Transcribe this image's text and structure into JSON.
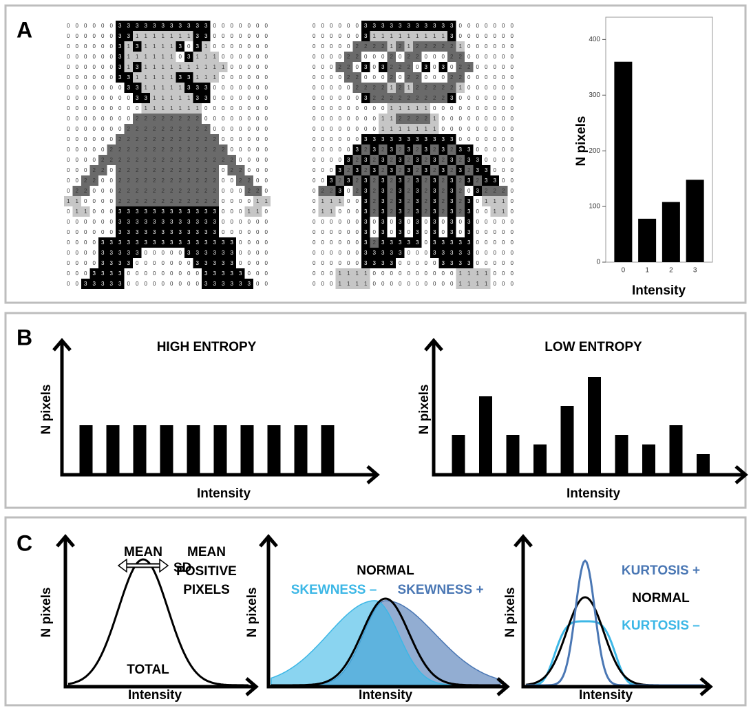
{
  "panel_labels": [
    "A",
    "B",
    "C"
  ],
  "chart_data": [
    {
      "type": "grid",
      "values": [
        [
          0,
          0,
          0,
          0,
          0,
          0,
          3,
          3,
          3,
          3,
          3,
          3,
          3,
          3,
          3,
          3,
          3,
          0,
          0,
          0,
          0,
          0,
          0,
          0
        ],
        [
          0,
          0,
          0,
          0,
          0,
          0,
          3,
          3,
          1,
          1,
          1,
          1,
          1,
          1,
          1,
          3,
          3,
          0,
          0,
          0,
          0,
          0,
          0,
          0
        ],
        [
          0,
          0,
          0,
          0,
          0,
          0,
          3,
          1,
          3,
          1,
          1,
          1,
          1,
          3,
          0,
          3,
          1,
          0,
          0,
          0,
          0,
          0,
          0,
          0
        ],
        [
          0,
          0,
          0,
          0,
          0,
          0,
          3,
          1,
          1,
          1,
          1,
          1,
          1,
          0,
          3,
          1,
          1,
          1,
          0,
          0,
          0,
          0,
          0,
          0
        ],
        [
          0,
          0,
          0,
          0,
          0,
          0,
          3,
          1,
          3,
          1,
          1,
          1,
          1,
          1,
          1,
          1,
          1,
          1,
          1,
          0,
          0,
          0,
          0,
          0
        ],
        [
          0,
          0,
          0,
          0,
          0,
          0,
          3,
          3,
          1,
          1,
          1,
          1,
          1,
          3,
          3,
          1,
          1,
          1,
          0,
          0,
          0,
          0,
          0,
          0
        ],
        [
          0,
          0,
          0,
          0,
          0,
          0,
          0,
          3,
          3,
          1,
          1,
          1,
          1,
          1,
          3,
          3,
          3,
          0,
          0,
          0,
          0,
          0,
          0,
          0
        ],
        [
          0,
          0,
          0,
          0,
          0,
          0,
          0,
          0,
          3,
          3,
          1,
          1,
          1,
          1,
          1,
          3,
          3,
          0,
          0,
          0,
          0,
          0,
          0,
          0
        ],
        [
          0,
          0,
          0,
          0,
          0,
          0,
          0,
          0,
          0,
          1,
          1,
          1,
          1,
          1,
          1,
          1,
          0,
          0,
          0,
          0,
          0,
          0,
          0,
          0
        ],
        [
          0,
          0,
          0,
          0,
          0,
          0,
          0,
          0,
          2,
          2,
          2,
          2,
          2,
          2,
          2,
          2,
          0,
          0,
          0,
          0,
          0,
          0,
          0,
          0
        ],
        [
          0,
          0,
          0,
          0,
          0,
          0,
          0,
          2,
          2,
          2,
          2,
          2,
          2,
          2,
          2,
          2,
          2,
          0,
          0,
          0,
          0,
          0,
          0,
          0
        ],
        [
          0,
          0,
          0,
          0,
          0,
          0,
          2,
          2,
          2,
          2,
          2,
          2,
          2,
          2,
          2,
          2,
          2,
          2,
          0,
          0,
          0,
          0,
          0,
          0
        ],
        [
          0,
          0,
          0,
          0,
          0,
          2,
          2,
          2,
          2,
          2,
          2,
          2,
          2,
          2,
          2,
          2,
          2,
          2,
          2,
          0,
          0,
          0,
          0,
          0
        ],
        [
          0,
          0,
          0,
          0,
          2,
          2,
          2,
          2,
          2,
          2,
          2,
          2,
          2,
          2,
          2,
          2,
          2,
          2,
          2,
          2,
          0,
          0,
          0,
          0
        ],
        [
          0,
          0,
          0,
          2,
          2,
          0,
          2,
          2,
          2,
          2,
          2,
          2,
          2,
          2,
          2,
          2,
          2,
          2,
          0,
          2,
          2,
          0,
          0,
          0
        ],
        [
          0,
          0,
          2,
          2,
          0,
          0,
          2,
          2,
          2,
          2,
          2,
          2,
          2,
          2,
          2,
          2,
          2,
          2,
          0,
          0,
          2,
          2,
          0,
          0
        ],
        [
          0,
          2,
          2,
          0,
          0,
          0,
          2,
          2,
          2,
          2,
          2,
          2,
          2,
          2,
          2,
          2,
          2,
          2,
          0,
          0,
          0,
          2,
          2,
          0
        ],
        [
          1,
          1,
          0,
          0,
          0,
          0,
          2,
          2,
          2,
          2,
          2,
          2,
          2,
          2,
          2,
          2,
          2,
          2,
          0,
          0,
          0,
          0,
          1,
          1
        ],
        [
          0,
          1,
          1,
          0,
          0,
          0,
          3,
          3,
          3,
          3,
          3,
          3,
          3,
          3,
          3,
          3,
          3,
          3,
          0,
          0,
          0,
          1,
          1,
          0
        ],
        [
          0,
          0,
          0,
          0,
          0,
          0,
          3,
          3,
          3,
          3,
          3,
          3,
          3,
          3,
          3,
          3,
          3,
          3,
          0,
          0,
          0,
          0,
          0,
          0
        ],
        [
          0,
          0,
          0,
          0,
          0,
          0,
          3,
          3,
          3,
          3,
          3,
          3,
          3,
          3,
          3,
          3,
          3,
          3,
          0,
          0,
          0,
          0,
          0,
          0
        ],
        [
          0,
          0,
          0,
          0,
          3,
          3,
          3,
          3,
          3,
          3,
          3,
          3,
          3,
          3,
          3,
          3,
          3,
          3,
          3,
          3,
          0,
          0,
          0,
          0
        ],
        [
          0,
          0,
          0,
          0,
          3,
          3,
          3,
          3,
          3,
          0,
          0,
          0,
          0,
          0,
          3,
          3,
          3,
          3,
          3,
          3,
          0,
          0,
          0,
          0
        ],
        [
          0,
          0,
          0,
          0,
          3,
          3,
          3,
          3,
          0,
          0,
          0,
          0,
          0,
          0,
          0,
          3,
          3,
          3,
          3,
          3,
          0,
          0,
          0,
          0
        ],
        [
          0,
          0,
          0,
          3,
          3,
          3,
          3,
          0,
          0,
          0,
          0,
          0,
          0,
          0,
          0,
          0,
          3,
          3,
          3,
          3,
          3,
          0,
          0,
          0
        ],
        [
          0,
          0,
          3,
          3,
          3,
          3,
          3,
          0,
          0,
          0,
          0,
          0,
          0,
          0,
          0,
          0,
          3,
          3,
          3,
          3,
          3,
          3,
          0,
          0
        ]
      ]
    },
    {
      "type": "grid",
      "values": [
        [
          0,
          0,
          0,
          0,
          0,
          0,
          3,
          3,
          3,
          3,
          3,
          3,
          3,
          3,
          3,
          3,
          3,
          0,
          0,
          0,
          0,
          0,
          0,
          0
        ],
        [
          0,
          0,
          0,
          0,
          0,
          0,
          3,
          1,
          1,
          1,
          1,
          1,
          1,
          1,
          1,
          1,
          3,
          0,
          0,
          0,
          0,
          0,
          0,
          0
        ],
        [
          0,
          0,
          0,
          0,
          0,
          2,
          2,
          2,
          2,
          1,
          2,
          1,
          2,
          2,
          2,
          2,
          2,
          1,
          0,
          0,
          0,
          0,
          0,
          0
        ],
        [
          0,
          0,
          0,
          0,
          2,
          2,
          0,
          0,
          0,
          2,
          0,
          2,
          2,
          0,
          0,
          0,
          2,
          2,
          0,
          0,
          0,
          0,
          0,
          0
        ],
        [
          0,
          0,
          0,
          2,
          2,
          0,
          3,
          0,
          3,
          2,
          2,
          2,
          0,
          3,
          0,
          3,
          0,
          2,
          2,
          0,
          0,
          0,
          0,
          0
        ],
        [
          0,
          0,
          0,
          0,
          2,
          2,
          0,
          0,
          0,
          2,
          0,
          2,
          2,
          0,
          0,
          0,
          2,
          2,
          0,
          0,
          0,
          0,
          0,
          0
        ],
        [
          0,
          0,
          0,
          0,
          0,
          2,
          2,
          2,
          2,
          1,
          2,
          1,
          2,
          2,
          2,
          2,
          2,
          1,
          0,
          0,
          0,
          0,
          0,
          0
        ],
        [
          0,
          0,
          0,
          0,
          0,
          0,
          3,
          2,
          2,
          2,
          2,
          2,
          2,
          2,
          2,
          2,
          3,
          0,
          0,
          0,
          0,
          0,
          0,
          0
        ],
        [
          0,
          0,
          0,
          0,
          0,
          0,
          0,
          0,
          0,
          1,
          1,
          1,
          1,
          1,
          0,
          0,
          0,
          0,
          0,
          0,
          0,
          0,
          0,
          0
        ],
        [
          0,
          0,
          0,
          0,
          0,
          0,
          0,
          0,
          1,
          1,
          2,
          2,
          2,
          2,
          1,
          0,
          0,
          0,
          0,
          0,
          0,
          0,
          0,
          0
        ],
        [
          0,
          0,
          0,
          0,
          0,
          0,
          0,
          0,
          1,
          1,
          1,
          1,
          1,
          1,
          1,
          0,
          0,
          0,
          0,
          0,
          0,
          0,
          0,
          0
        ],
        [
          0,
          0,
          0,
          0,
          0,
          0,
          3,
          3,
          3,
          3,
          3,
          3,
          3,
          3,
          3,
          3,
          3,
          0,
          0,
          0,
          0,
          0,
          0,
          0
        ],
        [
          0,
          0,
          0,
          0,
          0,
          3,
          2,
          3,
          2,
          3,
          2,
          3,
          2,
          3,
          2,
          3,
          2,
          3,
          3,
          0,
          0,
          0,
          0,
          0
        ],
        [
          0,
          0,
          0,
          0,
          3,
          2,
          3,
          2,
          3,
          2,
          3,
          2,
          3,
          2,
          3,
          2,
          3,
          2,
          3,
          3,
          0,
          0,
          0,
          0
        ],
        [
          0,
          0,
          0,
          3,
          2,
          3,
          2,
          3,
          2,
          3,
          2,
          3,
          2,
          3,
          2,
          3,
          2,
          3,
          2,
          3,
          3,
          0,
          0,
          0
        ],
        [
          0,
          0,
          3,
          2,
          3,
          2,
          3,
          2,
          3,
          2,
          3,
          2,
          3,
          2,
          3,
          2,
          3,
          2,
          3,
          2,
          3,
          3,
          0,
          0
        ],
        [
          0,
          2,
          2,
          3,
          0,
          2,
          3,
          2,
          3,
          2,
          3,
          2,
          3,
          2,
          3,
          2,
          3,
          2,
          0,
          3,
          2,
          2,
          2,
          0
        ],
        [
          0,
          1,
          1,
          1,
          0,
          0,
          3,
          2,
          3,
          2,
          3,
          2,
          3,
          2,
          3,
          2,
          3,
          2,
          3,
          0,
          1,
          1,
          1,
          0
        ],
        [
          0,
          1,
          1,
          0,
          0,
          0,
          3,
          2,
          3,
          2,
          3,
          2,
          3,
          2,
          3,
          2,
          3,
          2,
          3,
          0,
          0,
          1,
          1,
          0
        ],
        [
          0,
          0,
          0,
          0,
          0,
          0,
          3,
          0,
          3,
          0,
          3,
          0,
          3,
          0,
          3,
          0,
          3,
          0,
          3,
          0,
          0,
          0,
          0,
          0
        ],
        [
          0,
          0,
          0,
          0,
          0,
          0,
          3,
          0,
          3,
          0,
          3,
          0,
          3,
          0,
          3,
          0,
          3,
          0,
          3,
          0,
          0,
          0,
          0,
          0
        ],
        [
          0,
          0,
          0,
          0,
          0,
          0,
          3,
          2,
          3,
          3,
          3,
          3,
          3,
          0,
          3,
          3,
          3,
          3,
          3,
          0,
          0,
          0,
          0,
          0
        ],
        [
          0,
          0,
          0,
          0,
          0,
          0,
          3,
          3,
          3,
          3,
          3,
          0,
          0,
          0,
          3,
          3,
          3,
          3,
          3,
          0,
          0,
          0,
          0,
          0
        ],
        [
          0,
          0,
          0,
          0,
          0,
          0,
          3,
          3,
          3,
          3,
          0,
          0,
          0,
          0,
          0,
          3,
          3,
          3,
          3,
          0,
          0,
          0,
          0,
          0
        ],
        [
          0,
          0,
          0,
          1,
          1,
          1,
          1,
          0,
          0,
          0,
          0,
          0,
          0,
          0,
          0,
          0,
          0,
          1,
          1,
          1,
          1,
          0,
          0,
          0
        ],
        [
          0,
          0,
          0,
          1,
          1,
          1,
          1,
          0,
          0,
          0,
          0,
          0,
          0,
          0,
          0,
          0,
          0,
          1,
          1,
          1,
          1,
          0,
          0,
          0
        ]
      ]
    },
    {
      "type": "bar",
      "categories": [
        "0",
        "1",
        "2",
        "3"
      ],
      "values": [
        360,
        78,
        108,
        148
      ],
      "ylim": [
        0,
        440
      ],
      "yticks": [
        0,
        100,
        200,
        300,
        400
      ],
      "x_label": "Intensity",
      "y_label": "N pixels",
      "color": "#000000"
    },
    {
      "type": "bar",
      "title": "HIGH ENTROPY",
      "values": [
        5,
        5,
        5,
        5,
        5,
        5,
        5,
        5,
        5,
        5
      ],
      "x_label": "Intensity",
      "y_label": "N pixels",
      "color": "#000000"
    },
    {
      "type": "bar",
      "title": "LOW ENTROPY",
      "values": [
        4,
        8,
        4,
        3,
        7,
        10,
        4,
        3,
        5,
        2
      ],
      "x_label": "Intensity",
      "y_label": "N pixels",
      "color": "#000000"
    },
    {
      "type": "curve",
      "annotations": [
        "MEAN",
        "MEAN",
        "POSITIVE",
        "PIXELS",
        "SD",
        "TOTAL"
      ],
      "x_label": "Intensity",
      "y_label": "N pixels"
    },
    {
      "type": "curve",
      "series": [
        {
          "name": "NORMAL",
          "color": "#000000"
        },
        {
          "name": "SKEWNESS –",
          "color": "#3cb7e6"
        },
        {
          "name": "SKEWNESS +",
          "color": "#4a77b4"
        }
      ],
      "x_label": "Intensity",
      "y_label": "N pixels"
    },
    {
      "type": "curve",
      "series": [
        {
          "name": "KURTOSIS +",
          "color": "#4a77b4"
        },
        {
          "name": "NORMAL",
          "color": "#000000"
        },
        {
          "name": "KURTOSIS –",
          "color": "#3cb7e6"
        }
      ],
      "x_label": "Intensity",
      "y_label": "N pixels"
    }
  ]
}
